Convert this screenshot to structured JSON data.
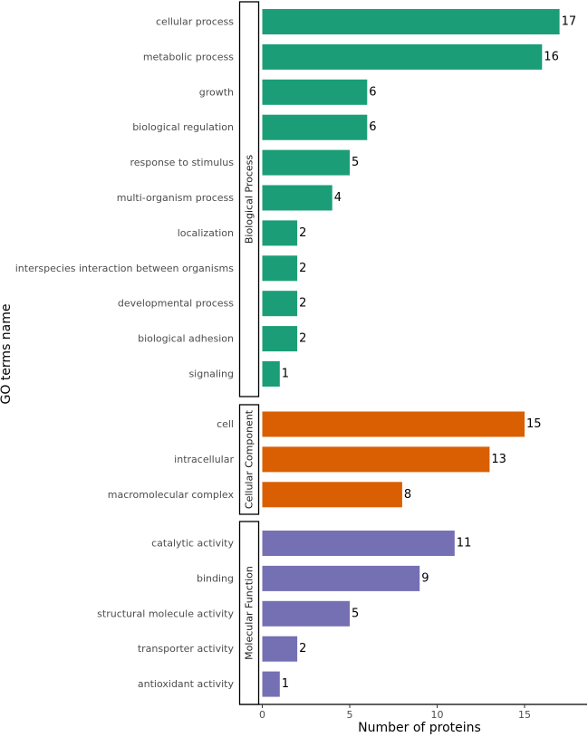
{
  "chart_data": {
    "type": "bar",
    "orientation": "horizontal",
    "xlabel": "Number of proteins",
    "ylabel": "GO terms name",
    "xlim": [
      0,
      18.5
    ],
    "xticks": [
      0,
      5,
      10,
      15
    ],
    "grid": false,
    "groups": [
      {
        "name": "Biological Process",
        "color": "#1b9e77",
        "categories": [
          "cellular process",
          "metabolic process",
          "growth",
          "biological regulation",
          "response to stimulus",
          "multi-organism process",
          "localization",
          "interspecies interaction between organisms",
          "developmental process",
          "biological adhesion",
          "signaling"
        ],
        "values": [
          17,
          16,
          6,
          6,
          5,
          4,
          2,
          2,
          2,
          2,
          1
        ]
      },
      {
        "name": "Cellular Component",
        "color": "#d95f02",
        "categories": [
          "cell",
          "intracellular",
          "macromolecular complex"
        ],
        "values": [
          15,
          13,
          8
        ]
      },
      {
        "name": "Molecular Function",
        "color": "#7570b3",
        "categories": [
          "catalytic activity",
          "binding",
          "structural molecule activity",
          "transporter activity",
          "antioxidant activity"
        ],
        "values": [
          11,
          9,
          5,
          2,
          1
        ]
      }
    ]
  }
}
